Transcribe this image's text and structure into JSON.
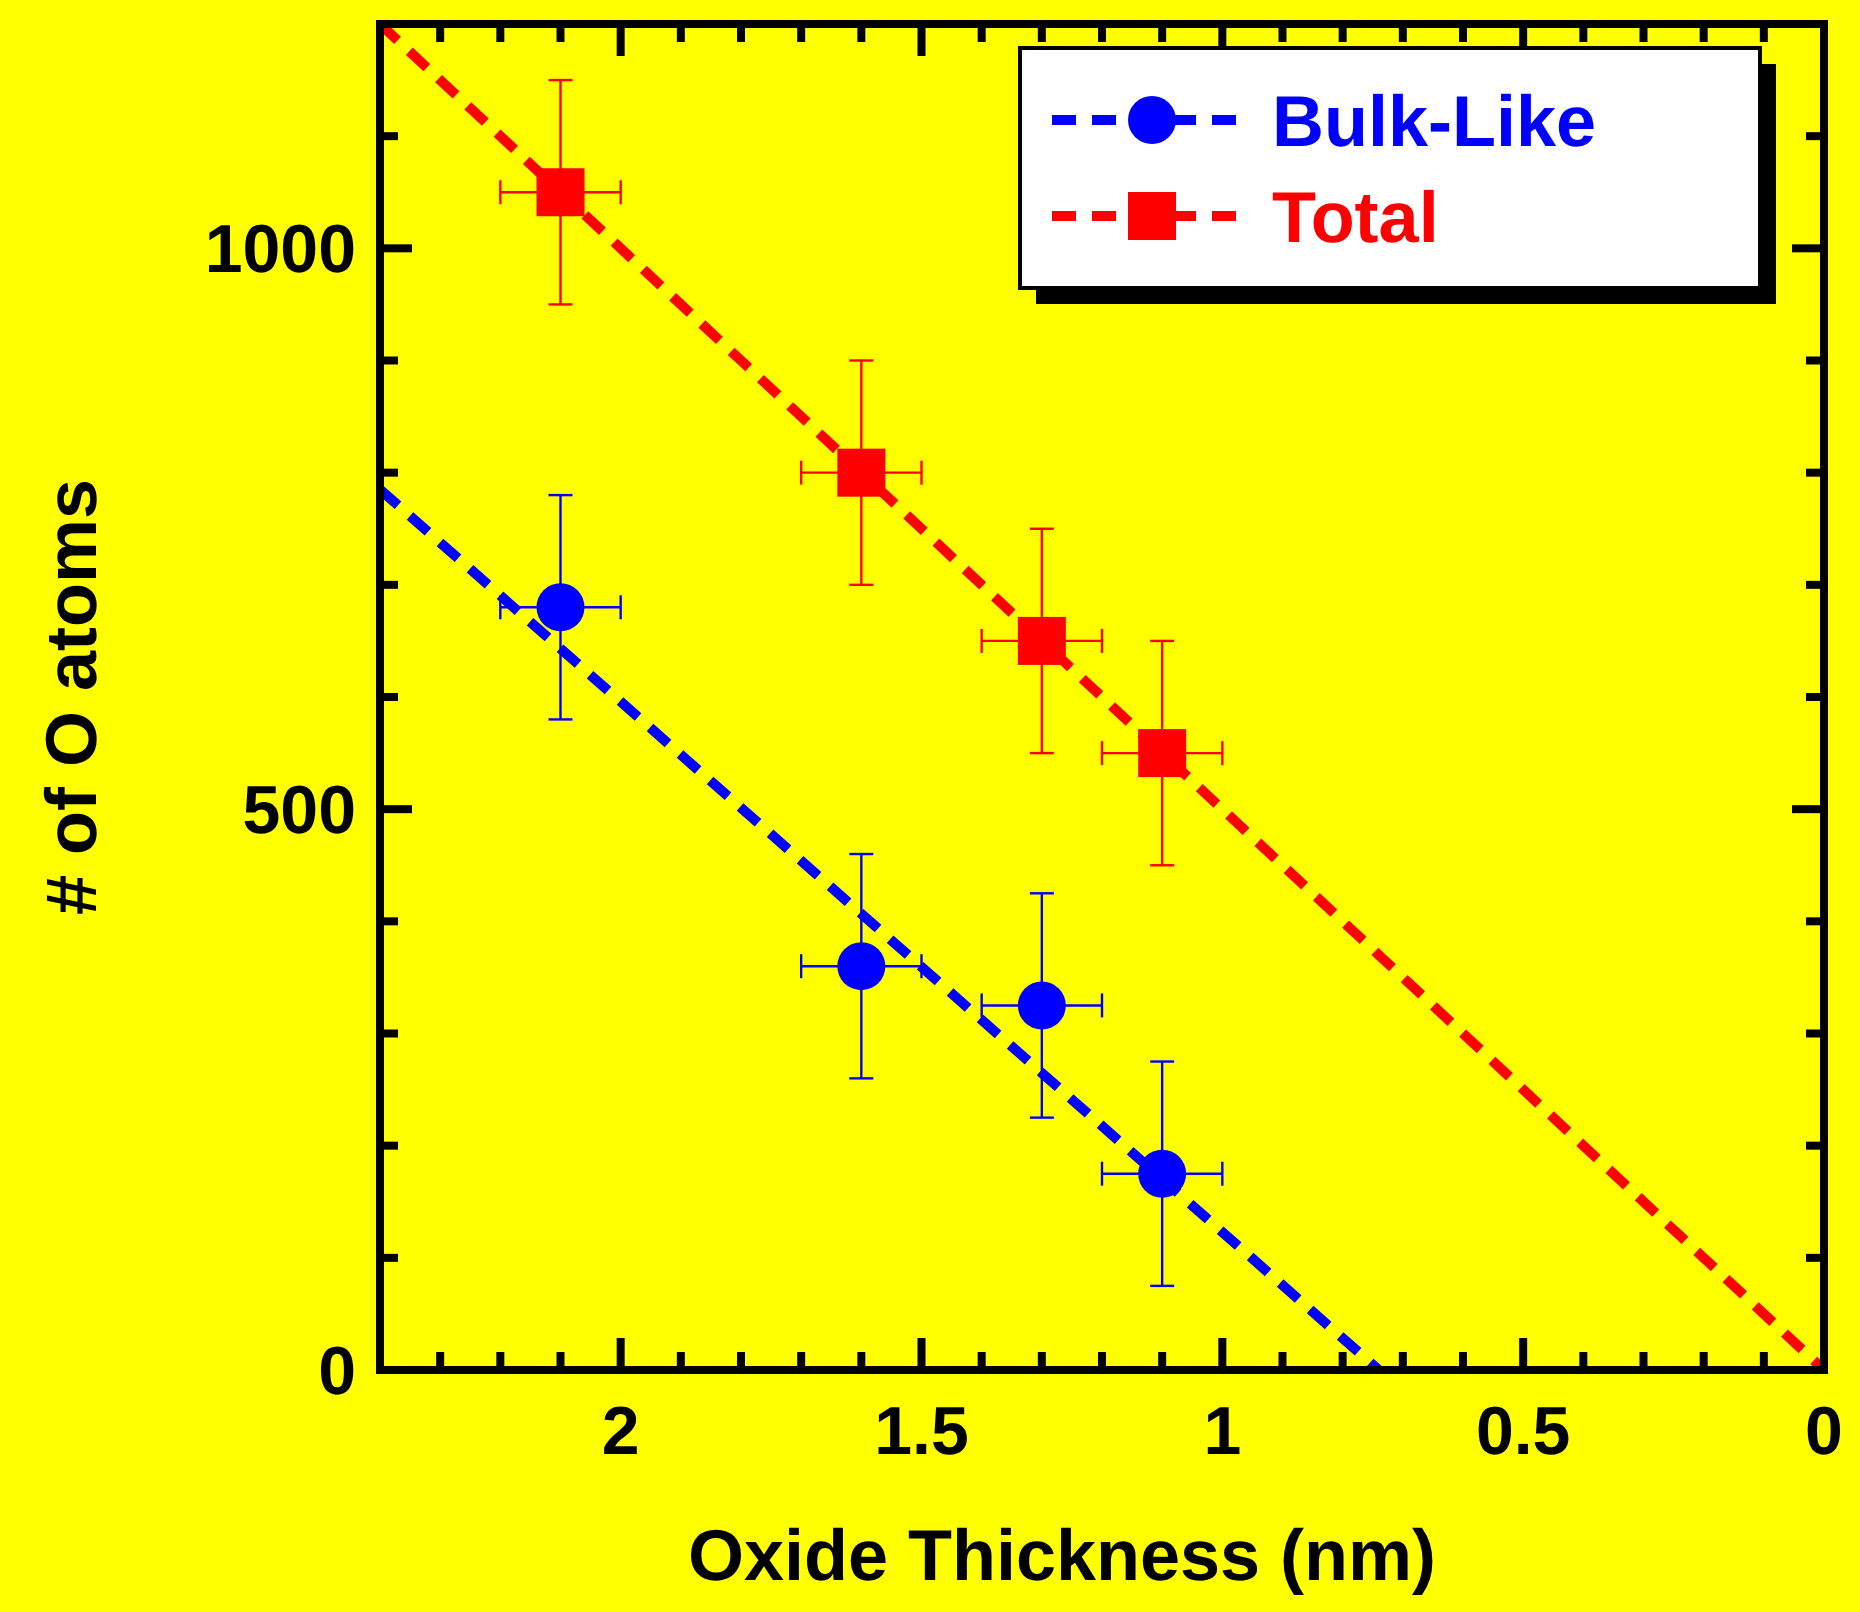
{
  "chart_data": {
    "type": "scatter",
    "xlabel": "Oxide Thickness (nm)",
    "ylabel": "# of O atoms",
    "xlim": [
      2.4,
      0
    ],
    "ylim": [
      0,
      1200
    ],
    "xticks": [
      {
        "value": 2.3,
        "label": null
      },
      {
        "value": 2.2,
        "label": null
      },
      {
        "value": 2.1,
        "label": null
      },
      2,
      {
        "value": 1.9,
        "label": null
      },
      {
        "value": 1.8,
        "label": null
      },
      {
        "value": 1.7,
        "label": null
      },
      {
        "value": 1.6,
        "label": null
      },
      1.5,
      {
        "value": 1.4,
        "label": null
      },
      {
        "value": 1.3,
        "label": null
      },
      {
        "value": 1.2,
        "label": null
      },
      {
        "value": 1.1,
        "label": null
      },
      1,
      {
        "value": 0.9,
        "label": null
      },
      {
        "value": 0.8,
        "label": null
      },
      {
        "value": 0.7,
        "label": null
      },
      {
        "value": 0.6,
        "label": null
      },
      0.5,
      {
        "value": 0.4,
        "label": null
      },
      {
        "value": 0.3,
        "label": null
      },
      {
        "value": 0.2,
        "label": null
      },
      {
        "value": 0.1,
        "label": null
      },
      0
    ],
    "yticks": [
      0,
      {
        "value": 100,
        "label": null
      },
      {
        "value": 200,
        "label": null
      },
      {
        "value": 300,
        "label": null
      },
      {
        "value": 400,
        "label": null
      },
      500,
      {
        "value": 600,
        "label": null
      },
      {
        "value": 700,
        "label": null
      },
      {
        "value": 800,
        "label": null
      },
      {
        "value": 900,
        "label": null
      },
      1000,
      {
        "value": 1100,
        "label": null
      },
      {
        "value": 1200,
        "label": null
      }
    ],
    "grid": false,
    "legend": "top right",
    "series": [
      {
        "type": "line",
        "color": "#0000ff",
        "x": [
          2.4,
          0.74
        ],
        "values": [
          785,
          0
        ],
        "marker": "none",
        "line_style": "dashed"
      },
      {
        "type": "line",
        "color": "#ff0000",
        "x": [
          2.4,
          0
        ],
        "values": [
          1200,
          0
        ],
        "marker": "none",
        "line_style": "dashed"
      },
      {
        "name": "Bulk-Like",
        "color": "#0000ff",
        "marker": "circle",
        "x": [
          2.1,
          1.6,
          1.3,
          1.1
        ],
        "values": [
          680,
          360,
          325,
          175
        ],
        "errors": [
          100,
          100,
          100,
          100
        ],
        "xerrors": [
          0.1,
          0.1,
          0.1,
          0.1
        ]
      },
      {
        "name": "Total",
        "color": "#ff0000",
        "marker": "square",
        "x": [
          2.1,
          1.6,
          1.3,
          1.1
        ],
        "values": [
          1050,
          800,
          650,
          550
        ],
        "errors": [
          100,
          100,
          100,
          100
        ],
        "xerrors": [
          0.1,
          0.1,
          0.1,
          0.1
        ]
      }
    ]
  }
}
